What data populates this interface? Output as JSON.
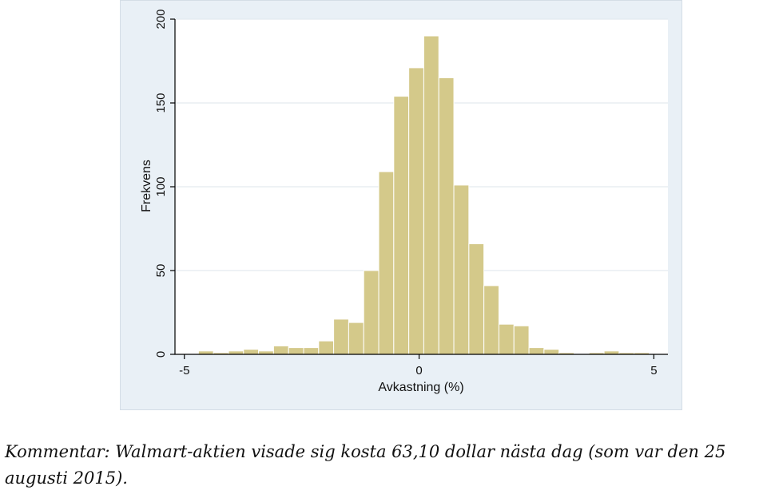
{
  "chart_data": {
    "type": "histogram",
    "xlabel": "Avkastning (%)",
    "ylabel": "Frekvens",
    "xlim": [
      -5.2,
      5.3
    ],
    "ylim": [
      0,
      200
    ],
    "x_ticks": [
      -5,
      0,
      5
    ],
    "x_tick_labels": [
      "-5",
      "0",
      "5"
    ],
    "y_ticks": [
      0,
      50,
      100,
      150,
      200
    ],
    "y_tick_labels": [
      "0",
      "50",
      "100",
      "150",
      "200"
    ],
    "grid": true,
    "bar_color": "#d4c98a",
    "bar_edge_color": "#ffffff",
    "bins": [
      {
        "start": -4.7,
        "end": -4.38,
        "count": 2
      },
      {
        "start": -4.38,
        "end": -4.06,
        "count": 1
      },
      {
        "start": -4.06,
        "end": -3.74,
        "count": 2
      },
      {
        "start": -3.74,
        "end": -3.42,
        "count": 3
      },
      {
        "start": -3.42,
        "end": -3.1,
        "count": 2
      },
      {
        "start": -3.1,
        "end": -2.78,
        "count": 5
      },
      {
        "start": -2.78,
        "end": -2.46,
        "count": 4
      },
      {
        "start": -2.46,
        "end": -2.14,
        "count": 4
      },
      {
        "start": -2.14,
        "end": -1.82,
        "count": 8
      },
      {
        "start": -1.82,
        "end": -1.5,
        "count": 21
      },
      {
        "start": -1.5,
        "end": -1.18,
        "count": 19
      },
      {
        "start": -1.18,
        "end": -0.86,
        "count": 50
      },
      {
        "start": -0.86,
        "end": -0.54,
        "count": 109
      },
      {
        "start": -0.54,
        "end": -0.22,
        "count": 154
      },
      {
        "start": -0.22,
        "end": 0.1,
        "count": 171
      },
      {
        "start": 0.1,
        "end": 0.42,
        "count": 190
      },
      {
        "start": 0.42,
        "end": 0.74,
        "count": 165
      },
      {
        "start": 0.74,
        "end": 1.06,
        "count": 101
      },
      {
        "start": 1.06,
        "end": 1.38,
        "count": 66
      },
      {
        "start": 1.38,
        "end": 1.7,
        "count": 41
      },
      {
        "start": 1.7,
        "end": 2.02,
        "count": 18
      },
      {
        "start": 2.02,
        "end": 2.34,
        "count": 17
      },
      {
        "start": 2.34,
        "end": 2.66,
        "count": 4
      },
      {
        "start": 2.66,
        "end": 2.98,
        "count": 3
      },
      {
        "start": 2.98,
        "end": 3.3,
        "count": 1
      },
      {
        "start": 3.3,
        "end": 3.62,
        "count": 0
      },
      {
        "start": 3.62,
        "end": 3.94,
        "count": 1
      },
      {
        "start": 3.94,
        "end": 4.26,
        "count": 2
      },
      {
        "start": 4.26,
        "end": 4.58,
        "count": 1
      },
      {
        "start": 4.58,
        "end": 4.9,
        "count": 1
      }
    ]
  },
  "caption": {
    "text": "Kommentar: Walmart-aktien visade sig kosta 63,10 dollar nästa dag (som var den 25 augusti 2015)."
  }
}
